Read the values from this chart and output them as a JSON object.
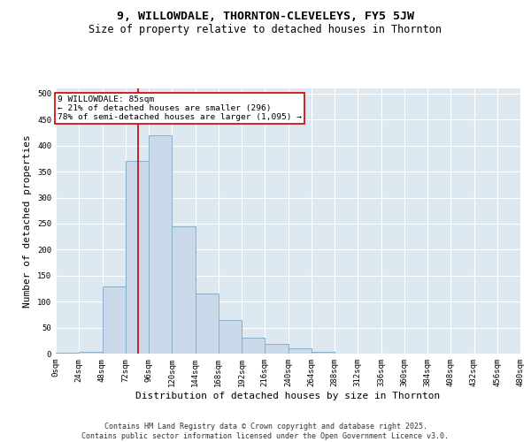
{
  "title": "9, WILLOWDALE, THORNTON-CLEVELEYS, FY5 5JW",
  "subtitle": "Size of property relative to detached houses in Thornton",
  "xlabel": "Distribution of detached houses by size in Thornton",
  "ylabel": "Number of detached properties",
  "bin_edges": [
    0,
    24,
    48,
    72,
    96,
    120,
    144,
    168,
    192,
    216,
    240,
    264,
    288,
    312,
    336,
    360,
    384,
    408,
    432,
    456,
    480
  ],
  "bar_values": [
    2,
    4,
    130,
    370,
    420,
    245,
    115,
    65,
    30,
    18,
    10,
    4,
    0,
    0,
    0,
    0,
    0,
    0,
    0,
    0
  ],
  "bar_color": "#c9d9ea",
  "bar_edge_color": "#8aafc8",
  "vline_x": 85,
  "vline_color": "#cc0000",
  "annotation_text": "9 WILLOWDALE: 85sqm\n← 21% of detached houses are smaller (296)\n78% of semi-detached houses are larger (1,095) →",
  "annotation_box_color": "#cc0000",
  "ylim": [
    0,
    510
  ],
  "yticks": [
    0,
    50,
    100,
    150,
    200,
    250,
    300,
    350,
    400,
    450,
    500
  ],
  "xlim": [
    0,
    480
  ],
  "background_color": "#dde8f0",
  "footer": "Contains HM Land Registry data © Crown copyright and database right 2025.\nContains public sector information licensed under the Open Government Licence v3.0.",
  "title_fontsize": 9.5,
  "subtitle_fontsize": 8.5,
  "tick_fontsize": 6.5,
  "ylabel_fontsize": 8,
  "xlabel_fontsize": 8,
  "footer_fontsize": 6
}
